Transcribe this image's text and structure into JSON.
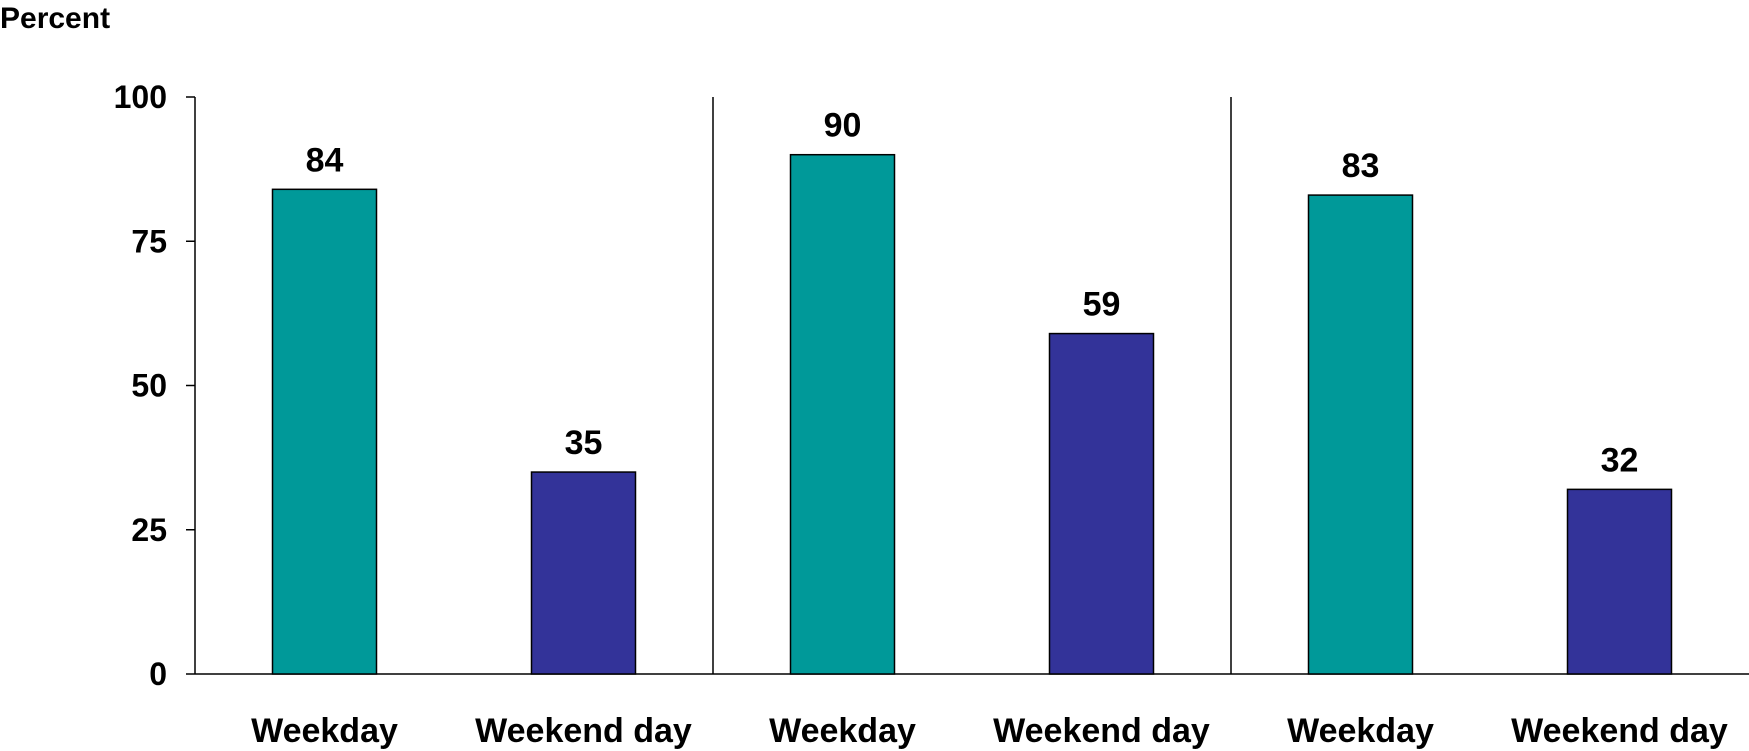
{
  "chart_data": {
    "type": "bar",
    "title": "",
    "xlabel": "",
    "ylabel": "Percent",
    "ylim": [
      0,
      100
    ],
    "yticks": [
      0,
      25,
      50,
      75,
      100
    ],
    "grid": false,
    "legend": "none",
    "colors": {
      "Weekday": "#009999",
      "Weekend day": "#333399"
    },
    "categories": [
      "Weekday",
      "Weekend day",
      "Weekday",
      "Weekend day",
      "Weekday",
      "Weekend day"
    ],
    "values": [
      84,
      35,
      90,
      59,
      83,
      32
    ],
    "group_separators_after": [
      1,
      3
    ]
  }
}
